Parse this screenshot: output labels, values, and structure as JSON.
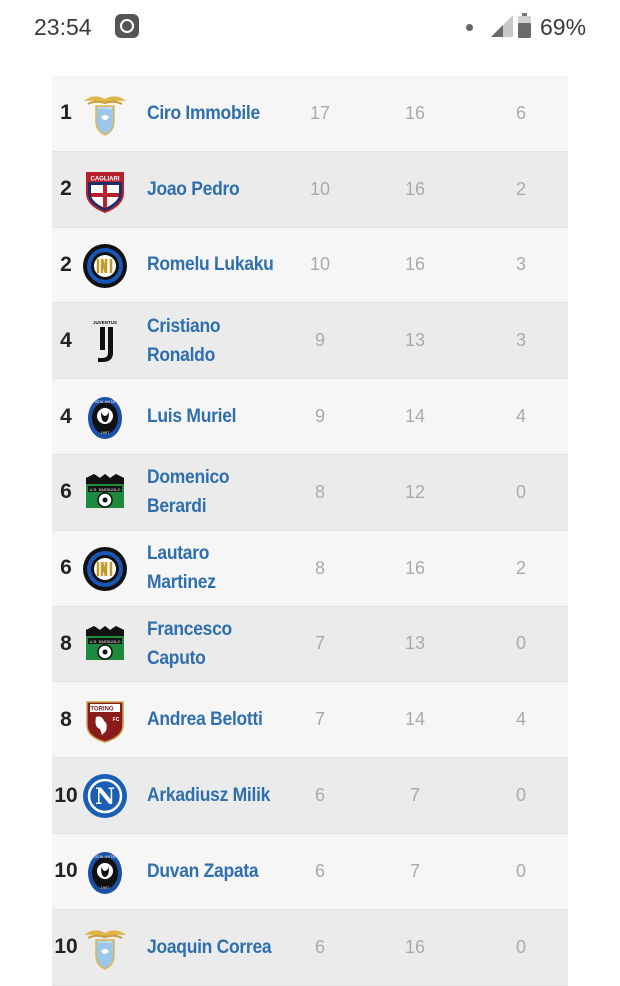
{
  "status": {
    "time": "23:54",
    "battery": "69%"
  },
  "rows": [
    {
      "rank": "1",
      "player": "Ciro Immobile",
      "club": "lazio",
      "goals": "17",
      "played": "16",
      "penalties": "6"
    },
    {
      "rank": "2",
      "player": "Joao Pedro",
      "club": "cagliari",
      "goals": "10",
      "played": "16",
      "penalties": "2"
    },
    {
      "rank": "2",
      "player": "Romelu Lukaku",
      "club": "inter",
      "goals": "10",
      "played": "16",
      "penalties": "3"
    },
    {
      "rank": "4",
      "player": "Cristiano Ronaldo",
      "club": "juventus",
      "goals": "9",
      "played": "13",
      "penalties": "3"
    },
    {
      "rank": "4",
      "player": "Luis Muriel",
      "club": "atalanta",
      "goals": "9",
      "played": "14",
      "penalties": "4"
    },
    {
      "rank": "6",
      "player": "Domenico Berardi",
      "club": "sassuolo",
      "goals": "8",
      "played": "12",
      "penalties": "0"
    },
    {
      "rank": "6",
      "player": "Lautaro Martinez",
      "club": "inter",
      "goals": "8",
      "played": "16",
      "penalties": "2"
    },
    {
      "rank": "8",
      "player": "Francesco Caputo",
      "club": "sassuolo",
      "goals": "7",
      "played": "13",
      "penalties": "0"
    },
    {
      "rank": "8",
      "player": "Andrea Belotti",
      "club": "torino",
      "goals": "7",
      "played": "14",
      "penalties": "4"
    },
    {
      "rank": "10",
      "player": "Arkadiusz Milik",
      "club": "napoli",
      "goals": "6",
      "played": "7",
      "penalties": "0"
    },
    {
      "rank": "10",
      "player": "Duvan Zapata",
      "club": "atalanta",
      "goals": "6",
      "played": "7",
      "penalties": "0"
    },
    {
      "rank": "10",
      "player": "Joaquin Correa",
      "club": "lazio",
      "goals": "6",
      "played": "16",
      "penalties": "0"
    }
  ],
  "logo_text": {
    "lazio": "S.S.LAZIO",
    "cagliari": "CAGLIARI",
    "juventus": "JUVENTUS",
    "torino": "TORINO",
    "torino_fc": "FC",
    "atalanta": "ATALANTA",
    "atalanta_year": "1907",
    "sassuolo": "U.S. SASSUOLO",
    "napoli": "N"
  },
  "colors": {
    "name_link": "#2f6fad",
    "stat_text": "#aaaaaa",
    "row_odd": "#f6f6f6",
    "row_even": "#ebebeb"
  }
}
